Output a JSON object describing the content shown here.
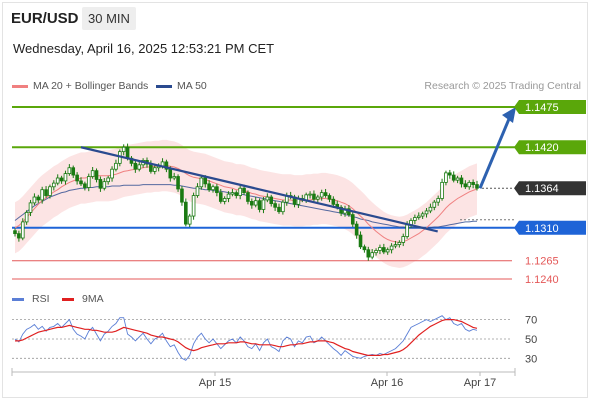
{
  "header": {
    "symbol": "EUR/USD",
    "interval": "30 MIN",
    "timestamp": "Wednesday, April 16, 2025 12:53:21 PM CET"
  },
  "legend": {
    "ma20_label": "MA 20 + Bollinger Bands",
    "ma50_label": "MA 50",
    "credit": "Research © 2025 Trading Central"
  },
  "rsi_legend": {
    "rsi_label": "RSI",
    "ma_label": "9MA"
  },
  "colors": {
    "resistance": "#5aa70a",
    "pivot": "#1e64d7",
    "support": "#e45858",
    "current": "#333333",
    "candle": "#1a7a12",
    "ma20": "#f08080",
    "ma50": "#2a4a8f",
    "rsi": "#5b7fd6",
    "rsi_ma": "#e02020"
  },
  "chart_data": [
    {
      "type": "candlestick",
      "ylim": [
        1.1225,
        1.149
      ],
      "xticks": [
        "Apr 15",
        "Apr 16",
        "Apr 17"
      ],
      "levels": [
        {
          "value": 1.1475,
          "label": "1.1475",
          "kind": "resistance"
        },
        {
          "value": 1.142,
          "label": "1.1420",
          "kind": "resistance"
        },
        {
          "value": 1.1364,
          "label": "1.1364",
          "kind": "current"
        },
        {
          "value": 1.131,
          "label": "1.1310",
          "kind": "pivot"
        },
        {
          "value": 1.1265,
          "label": "1.1265",
          "kind": "support"
        },
        {
          "value": 1.124,
          "label": "1.1240",
          "kind": "support"
        }
      ],
      "trendline": {
        "from": 1.142,
        "to": 1.1305
      },
      "target_arrow": {
        "from": 1.1364,
        "to": 1.1475
      },
      "closes": [
        1.1302,
        1.1296,
        1.1318,
        1.1331,
        1.1344,
        1.1352,
        1.1348,
        1.1362,
        1.1354,
        1.1366,
        1.1371,
        1.1378,
        1.1374,
        1.1384,
        1.1392,
        1.1382,
        1.1374,
        1.137,
        1.1365,
        1.138,
        1.1388,
        1.1376,
        1.1364,
        1.1373,
        1.1378,
        1.139,
        1.1398,
        1.1414,
        1.142,
        1.1405,
        1.1398,
        1.139,
        1.1396,
        1.1402,
        1.1397,
        1.1387,
        1.1392,
        1.1394,
        1.14,
        1.139,
        1.1378,
        1.138,
        1.1363,
        1.1345,
        1.1315,
        1.1326,
        1.1354,
        1.1366,
        1.1378,
        1.137,
        1.1362,
        1.1366,
        1.1358,
        1.1346,
        1.135,
        1.1356,
        1.1358,
        1.1354,
        1.1364,
        1.1358,
        1.1346,
        1.1341,
        1.1347,
        1.1335,
        1.1348,
        1.1352,
        1.1343,
        1.1338,
        1.1332,
        1.1345,
        1.1354,
        1.1352,
        1.1342,
        1.135,
        1.1348,
        1.1355,
        1.1356,
        1.1349,
        1.1352,
        1.1358,
        1.1354,
        1.1349,
        1.1342,
        1.1338,
        1.133,
        1.1336,
        1.1328,
        1.1315,
        1.13,
        1.1284,
        1.128,
        1.127,
        1.1276,
        1.1279,
        1.1283,
        1.1277,
        1.128,
        1.1285,
        1.1287,
        1.129,
        1.1298,
        1.1314,
        1.132,
        1.1324,
        1.1326,
        1.1329,
        1.1333,
        1.1338,
        1.1345,
        1.135,
        1.1372,
        1.1385,
        1.1382,
        1.1375,
        1.1378,
        1.137,
        1.1366,
        1.1372,
        1.1369,
        1.1364
      ],
      "ma20": [
        1.131,
        1.1313,
        1.1318,
        1.1324,
        1.133,
        1.1336,
        1.1342,
        1.1347,
        1.1351,
        1.1355,
        1.1359,
        1.1362,
        1.1366,
        1.1369,
        1.1372,
        1.1374,
        1.1376,
        1.1378,
        1.1378,
        1.1379,
        1.138,
        1.1381,
        1.1381,
        1.1381,
        1.1381,
        1.1382,
        1.1383,
        1.1385,
        1.1387,
        1.1388,
        1.1389,
        1.139,
        1.1391,
        1.1392,
        1.1393,
        1.1393,
        1.1394,
        1.1394,
        1.1395,
        1.1395,
        1.1394,
        1.1393,
        1.1391,
        1.1388,
        1.1384,
        1.1381,
        1.1379,
        1.1378,
        1.1377,
        1.1376,
        1.1374,
        1.1372,
        1.137,
        1.1368,
        1.1366,
        1.1365,
        1.1364,
        1.1362,
        1.1362,
        1.1361,
        1.1359,
        1.1357,
        1.1356,
        1.1354,
        1.1353,
        1.1352,
        1.1351,
        1.135,
        1.1349,
        1.1348,
        1.1348,
        1.1348,
        1.1347,
        1.1347,
        1.1347,
        1.1348,
        1.1348,
        1.1349,
        1.1349,
        1.135,
        1.135,
        1.1349,
        1.1348,
        1.1347,
        1.1345,
        1.1343,
        1.134,
        1.1336,
        1.1331,
        1.1326,
        1.1321,
        1.1315,
        1.131,
        1.1305,
        1.1301,
        1.1297,
        1.1294,
        1.1292,
        1.1291,
        1.129,
        1.1291,
        1.1293,
        1.1296,
        1.1299,
        1.1302,
        1.1306,
        1.131,
        1.1315,
        1.132,
        1.1325,
        1.1331,
        1.1337,
        1.1342,
        1.1346,
        1.135,
        1.1353,
        1.1356,
        1.1359,
        1.1361,
        1.1363
      ],
      "ma50": [
        1.132,
        1.1324,
        1.1328,
        1.1332,
        1.1336,
        1.134,
        1.1343,
        1.1346,
        1.1349,
        1.1352,
        1.1354,
        1.1356,
        1.1358,
        1.1359,
        1.1361,
        1.1362,
        1.1363,
        1.1364,
        1.1364,
        1.1365,
        1.1365,
        1.1366,
        1.1366,
        1.1366,
        1.1366,
        1.1367,
        1.1367,
        1.1367,
        1.1368,
        1.1368,
        1.1368,
        1.1368,
        1.1368,
        1.1369,
        1.1369,
        1.1369,
        1.1369,
        1.1369,
        1.1369,
        1.1369,
        1.1369,
        1.1368,
        1.1368,
        1.1367,
        1.1366,
        1.1365,
        1.1364,
        1.1364,
        1.1363,
        1.1362,
        1.1362,
        1.1361,
        1.136,
        1.136,
        1.1359,
        1.1358,
        1.1357,
        1.1357,
        1.1356,
        1.1355,
        1.1354,
        1.1353,
        1.1352,
        1.1351,
        1.135,
        1.1349,
        1.1348,
        1.1347,
        1.1346,
        1.1345,
        1.1344,
        1.1343,
        1.1342,
        1.1341,
        1.134,
        1.1339,
        1.1338,
        1.1337,
        1.1336,
        1.1335,
        1.1334,
        1.1333,
        1.1332,
        1.1331,
        1.133,
        1.1328,
        1.1327,
        1.1325,
        1.1324,
        1.1322,
        1.1321,
        1.132,
        1.1318,
        1.1317,
        1.1316,
        1.1315,
        1.1314,
        1.1313,
        1.1312,
        1.1311,
        1.1311,
        1.131,
        1.131,
        1.131,
        1.131,
        1.131,
        1.131,
        1.131,
        1.1311,
        1.1311,
        1.1312,
        1.1313,
        1.1314,
        1.1315,
        1.1316,
        1.1317,
        1.1318,
        1.1318,
        1.1319,
        1.1319
      ],
      "band_width": 0.0035
    },
    {
      "type": "line",
      "title": "RSI",
      "ylim": [
        20,
        82
      ],
      "yticks": [
        70,
        50,
        30
      ],
      "series": [
        {
          "name": "RSI",
          "values": [
            50,
            47,
            55,
            60,
            62,
            65,
            60,
            63,
            58,
            62,
            63,
            66,
            62,
            66,
            70,
            60,
            55,
            53,
            50,
            58,
            62,
            55,
            48,
            55,
            58,
            63,
            66,
            72,
            72,
            55,
            52,
            48,
            52,
            56,
            50,
            45,
            50,
            52,
            56,
            48,
            42,
            44,
            36,
            30,
            28,
            33,
            45,
            52,
            56,
            50,
            46,
            50,
            45,
            40,
            44,
            48,
            50,
            46,
            52,
            48,
            42,
            40,
            45,
            38,
            46,
            50,
            42,
            40,
            37,
            48,
            52,
            50,
            42,
            48,
            46,
            52,
            53,
            46,
            48,
            52,
            48,
            44,
            40,
            37,
            33,
            38,
            35,
            32,
            31,
            30,
            32,
            33,
            34,
            33,
            35,
            34,
            36,
            38,
            40,
            44,
            48,
            55,
            62,
            64,
            66,
            68,
            70,
            68,
            70,
            72,
            74,
            70,
            72,
            66,
            64,
            66,
            60,
            58,
            60,
            59
          ]
        },
        {
          "name": "9MA",
          "values": [
            48,
            48,
            49,
            51,
            53,
            55,
            57,
            58,
            59,
            60,
            61,
            62,
            62,
            63,
            64,
            63,
            62,
            61,
            60,
            60,
            59,
            59,
            58,
            57,
            57,
            57,
            58,
            60,
            62,
            61,
            60,
            59,
            58,
            57,
            56,
            54,
            53,
            52,
            52,
            51,
            50,
            49,
            47,
            44,
            41,
            39,
            38,
            39,
            41,
            42,
            43,
            44,
            45,
            45,
            45,
            46,
            46,
            46,
            47,
            47,
            46,
            45,
            45,
            44,
            44,
            44,
            44,
            43,
            42,
            42,
            43,
            44,
            44,
            45,
            45,
            46,
            47,
            47,
            48,
            48,
            48,
            47,
            46,
            44,
            42,
            40,
            39,
            37,
            36,
            35,
            34,
            33,
            33,
            33,
            33,
            34,
            34,
            35,
            36,
            37,
            39,
            42,
            46,
            50,
            54,
            57,
            60,
            63,
            65,
            67,
            69,
            70,
            70,
            70,
            69,
            68,
            66,
            64,
            62,
            61
          ]
        }
      ]
    }
  ]
}
